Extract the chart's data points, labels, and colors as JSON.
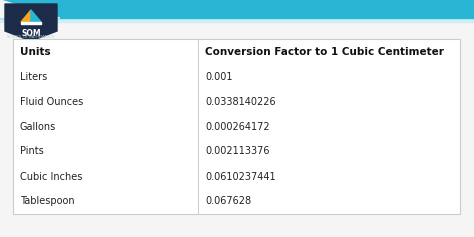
{
  "col_headers": [
    "Units",
    "Conversion Factor to 1 Cubic Centimeter"
  ],
  "rows": [
    [
      "Liters",
      "0.001"
    ],
    [
      "Fluid Ounces",
      "0.0338140226"
    ],
    [
      "Gallons",
      "0.000264172"
    ],
    [
      "Pints",
      "0.002113376"
    ],
    [
      "Cubic Inches",
      "0.0610237441"
    ],
    [
      "Tablespoon",
      "0.067628"
    ]
  ],
  "bg_color": "#f5f5f5",
  "table_bg": "#ffffff",
  "border_color": "#cccccc",
  "header_font_size": 7.5,
  "row_font_size": 7.0,
  "top_stripe_color": "#29b6d4",
  "logo_bg": "#1c2b47",
  "logo_text_color": "#ffffff",
  "icon_orange": "#f5a623",
  "icon_blue": "#29b6d4",
  "fig_width": 4.74,
  "fig_height": 2.37,
  "dpi": 100
}
